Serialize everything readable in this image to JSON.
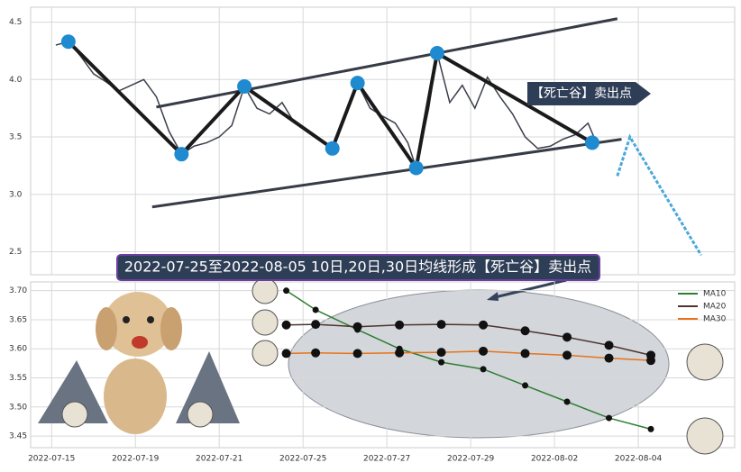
{
  "chart_data": [
    {
      "type": "line",
      "annotation": "【死亡谷】卖出点",
      "x": [
        0.1,
        0.4,
        0.7,
        1.0,
        1.3,
        1.6,
        1.9,
        2.2,
        2.5,
        2.8,
        3.1,
        3.4,
        3.7,
        4.0,
        4.3,
        4.6,
        4.9,
        5.2,
        5.5,
        5.8,
        6.1,
        6.4,
        6.7,
        7.0,
        7.3,
        7.6,
        7.9,
        8.2,
        8.5,
        8.7,
        9.0,
        9.2,
        9.5,
        9.8,
        10.1,
        10.4,
        10.7,
        11.0,
        11.3,
        11.6,
        11.9,
        12.2,
        12.5,
        12.8,
        13.0
      ],
      "values": [
        4.3,
        4.33,
        4.2,
        4.05,
        3.98,
        3.9,
        3.95,
        4.0,
        3.85,
        3.55,
        3.35,
        3.42,
        3.45,
        3.5,
        3.6,
        3.94,
        3.75,
        3.7,
        3.8,
        3.62,
        3.55,
        3.48,
        3.4,
        3.7,
        3.97,
        3.75,
        3.68,
        3.62,
        3.45,
        3.23,
        3.75,
        4.23,
        3.8,
        3.95,
        3.75,
        4.02,
        3.85,
        3.7,
        3.5,
        3.4,
        3.42,
        3.48,
        3.52,
        3.62,
        3.45
      ],
      "color": "#3a3f4b",
      "zigzag": {
        "x": [
          0.4,
          3.1,
          4.6,
          6.7,
          7.3,
          8.7,
          9.2,
          12.9
        ],
        "values": [
          4.33,
          3.35,
          3.94,
          3.4,
          3.97,
          3.23,
          4.23,
          3.45
        ],
        "color": "#1f8ad0"
      },
      "channel": [
        {
          "x": [
            2.5,
            13.5
          ],
          "values": [
            3.76,
            4.53
          ]
        },
        {
          "x": [
            2.4,
            13.6
          ],
          "values": [
            2.89,
            3.48
          ]
        }
      ],
      "projection": {
        "x": [
          13.5,
          13.8,
          15.5
        ],
        "values": [
          3.16,
          3.5,
          2.47
        ],
        "color": "#4aa8d8"
      },
      "ylim": [
        2.3,
        4.63
      ],
      "yticks": [
        {
          "value": 2.5,
          "label": "2.5"
        },
        {
          "value": 3.0,
          "label": "3.0"
        },
        {
          "value": 3.5,
          "label": "3.5"
        },
        {
          "value": 4.0,
          "label": "4.0"
        },
        {
          "value": 4.5,
          "label": "4.5"
        }
      ],
      "xlim": [
        -0.5,
        16.3
      ],
      "grid": true
    },
    {
      "type": "line",
      "title": "2022-07-25至2022-08-05 10日,20日,30日均线形成【死亡谷】卖出点",
      "x": [
        5.6,
        6.3,
        7.3,
        8.3,
        9.3,
        10.3,
        11.3,
        12.3,
        13.3,
        14.3
      ],
      "series": [
        {
          "name": "MA10",
          "color": "#2e7d32",
          "values": [
            3.7,
            3.667,
            3.633,
            3.6,
            3.577,
            3.565,
            3.537,
            3.509,
            3.481,
            3.462
          ]
        },
        {
          "name": "MA20",
          "color": "#4e342e",
          "values": [
            3.641,
            3.642,
            3.638,
            3.641,
            3.642,
            3.641,
            3.631,
            3.62,
            3.606,
            3.589
          ]
        },
        {
          "name": "MA30",
          "color": "#e8731a",
          "values": [
            3.592,
            3.593,
            3.592,
            3.593,
            3.594,
            3.596,
            3.592,
            3.589,
            3.584,
            3.58
          ]
        }
      ],
      "ylim": [
        3.43,
        3.715
      ],
      "yticks": [
        {
          "value": 3.45,
          "label": "3.45"
        },
        {
          "value": 3.5,
          "label": "3.50"
        },
        {
          "value": 3.55,
          "label": "3.55"
        },
        {
          "value": 3.6,
          "label": "3.60"
        },
        {
          "value": 3.65,
          "label": "3.65"
        },
        {
          "value": 3.7,
          "label": "3.70"
        }
      ],
      "xlim": [
        -0.5,
        16.3
      ],
      "xticks": [
        {
          "value": 0,
          "label": "2022-07-15"
        },
        {
          "value": 2,
          "label": "2022-07-19"
        },
        {
          "value": 4,
          "label": "2022-07-21"
        },
        {
          "value": 6,
          "label": "2022-07-25"
        },
        {
          "value": 8,
          "label": "2022-07-27"
        },
        {
          "value": 10,
          "label": "2022-07-29"
        },
        {
          "value": 12,
          "label": "2022-08-02"
        },
        {
          "value": 14,
          "label": "2022-08-04"
        }
      ],
      "legend": "upper right",
      "grid": true
    }
  ]
}
